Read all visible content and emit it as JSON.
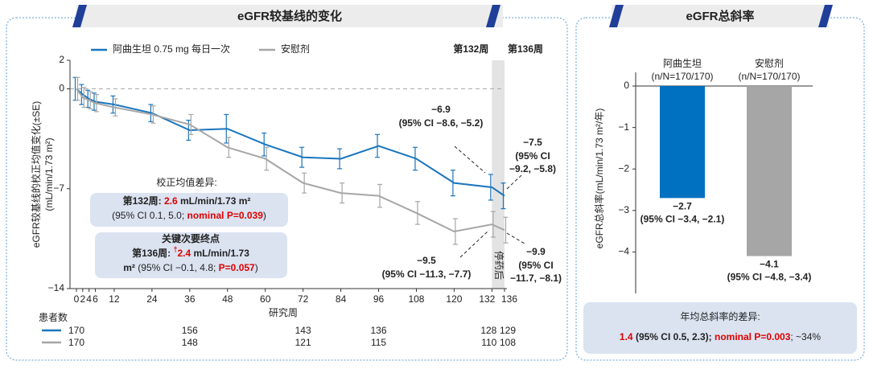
{
  "chart_data": [
    {
      "type": "line",
      "title": "eGFR较基线的变化",
      "x": [
        0,
        2,
        4,
        6,
        12,
        24,
        36,
        48,
        60,
        72,
        84,
        96,
        108,
        120,
        132,
        136
      ],
      "xlim": [
        0,
        136
      ],
      "xticks": [
        0,
        2,
        4,
        6,
        12,
        24,
        36,
        48,
        60,
        72,
        84,
        96,
        108,
        120,
        132,
        136
      ],
      "xlabel": "研究周",
      "ylabel": "eGFR较基线的校正均值变化(±SE)",
      "ylabel_unit": "(mL/min/1.73 m²)",
      "ylim": [
        -14,
        2
      ],
      "yticks": [
        2,
        0,
        {
          "value": -7,
          "label": "−7"
        },
        {
          "value": -14,
          "label": "−14"
        }
      ],
      "reference_line": 0,
      "series": [
        {
          "name": "阿曲生坦 0.75 mg 每日一次",
          "color": "#1a75bc",
          "values": [
            0,
            -0.4,
            -0.7,
            -0.9,
            -1.1,
            -1.7,
            -2.9,
            -2.8,
            -3.9,
            -4.8,
            -4.9,
            -4.0,
            -4.9,
            -6.6,
            -6.9,
            -7.5
          ],
          "errors": [
            0.8,
            0.7,
            0.6,
            0.6,
            0.6,
            0.6,
            0.7,
            1.0,
            0.8,
            0.7,
            0.7,
            0.8,
            0.8,
            0.9,
            0.9,
            0.9
          ],
          "value_labels": [
            null,
            null,
            null,
            null,
            null,
            null,
            null,
            null,
            null,
            null,
            null,
            null,
            null,
            null,
            "−6.9",
            "−7.5"
          ],
          "ci_labels": [
            null,
            null,
            null,
            null,
            null,
            null,
            null,
            null,
            null,
            null,
            null,
            null,
            null,
            null,
            "(95% CI −8.6, −5.2)",
            "(95% CI −9.2, −5.8)"
          ]
        },
        {
          "name": "安慰剂",
          "color": "#a6a6a6",
          "values": [
            0,
            -0.6,
            -0.8,
            -1.0,
            -1.3,
            -1.8,
            -2.5,
            -4.1,
            -4.9,
            -6.6,
            -7.3,
            -7.5,
            -8.7,
            -10.0,
            -9.5,
            -9.9
          ],
          "errors": [
            0.8,
            0.7,
            0.6,
            0.6,
            0.6,
            0.6,
            0.7,
            0.7,
            0.8,
            0.7,
            0.7,
            0.8,
            0.8,
            0.9,
            0.9,
            0.9
          ],
          "value_labels": [
            null,
            null,
            null,
            null,
            null,
            null,
            null,
            null,
            null,
            null,
            null,
            null,
            null,
            null,
            "−9.5",
            "−9.9"
          ],
          "ci_labels": [
            null,
            null,
            null,
            null,
            null,
            null,
            null,
            null,
            null,
            null,
            null,
            null,
            null,
            null,
            "(95% CI −11.3, −7.7)",
            "(95% CI −11.7, −8.1)"
          ]
        }
      ],
      "shaded_span": [
        132,
        136
      ],
      "shaded_label": "停药后",
      "period_labels": [
        {
          "x": 132,
          "text": "第132周"
        },
        {
          "x": 136,
          "text": "第136周"
        }
      ],
      "at_risk": {
        "title": "患者数",
        "x": [
          0,
          36,
          72,
          96,
          132,
          136
        ],
        "counts": [
          [
            170,
            156,
            143,
            136,
            128,
            129
          ],
          [
            170,
            148,
            121,
            115,
            110,
            108
          ]
        ]
      },
      "notes": [
        {
          "title": "校正均值差异:",
          "lines": [
            [
              {
                "text": "第132周: ",
                "style": "bold"
              },
              {
                "text": "2.6",
                "style": "red-bold"
              },
              {
                "text": " mL/min/1.73 m²",
                "style": "bold"
              }
            ],
            [
              {
                "text": "(95% CI 0.1, 5.0; ",
                "style": "normal"
              },
              {
                "text": "nominal P=0.039",
                "style": "red-bold"
              },
              {
                "text": ")",
                "style": "normal"
              }
            ]
          ]
        },
        {
          "title": "关键次要终点",
          "lines": [
            [
              {
                "text": "第136周: ",
                "style": "bold"
              },
              {
                "text": "†",
                "style": "red-sup"
              },
              {
                "text": "2.4",
                "style": "red-bold"
              },
              {
                "text": " mL/min/1.73",
                "style": "bold"
              }
            ],
            [
              {
                "text": "m²",
                "style": "bold"
              },
              {
                "text": " (95% CI −0.1, 4.8; ",
                "style": "normal"
              },
              {
                "text": "P=0.057",
                "style": "red-bold"
              },
              {
                "text": ")",
                "style": "normal"
              }
            ]
          ]
        }
      ]
    },
    {
      "type": "bar",
      "title": "eGFR总斜率",
      "categories": [
        "阿曲生坦",
        "安慰剂"
      ],
      "category_notes": [
        "(n/N=170/170)",
        "(n/N=170/170)"
      ],
      "values": [
        -2.7,
        -4.1
      ],
      "value_labels": [
        "−2.7",
        "−4.1"
      ],
      "ci_labels": [
        "(95% CI −3.4, −2.1)",
        "(95% CI −4.8, −3.4)"
      ],
      "colors": [
        "#0070c0",
        "#a6a6a6"
      ],
      "ylabel": "eGFR总斜率(mL/min/1.73 m²/年)",
      "ylim": [
        -5,
        0.33
      ],
      "yticks": [
        0,
        {
          "value": -1,
          "label": "−1"
        },
        {
          "value": -2,
          "label": "−2"
        },
        {
          "value": -3,
          "label": "−3"
        },
        {
          "value": -4,
          "label": "−4"
        }
      ],
      "summary": {
        "title": "年均总斜率的差异:",
        "runs": [
          {
            "text": "1.4",
            "style": "red-bold"
          },
          {
            "text": " (95% CI 0.5, 2.3); ",
            "style": "bold"
          },
          {
            "text": "nominal P=0.003",
            "style": "red-bold"
          },
          {
            "text": "; ~34%",
            "style": "normal"
          }
        ]
      }
    }
  ]
}
